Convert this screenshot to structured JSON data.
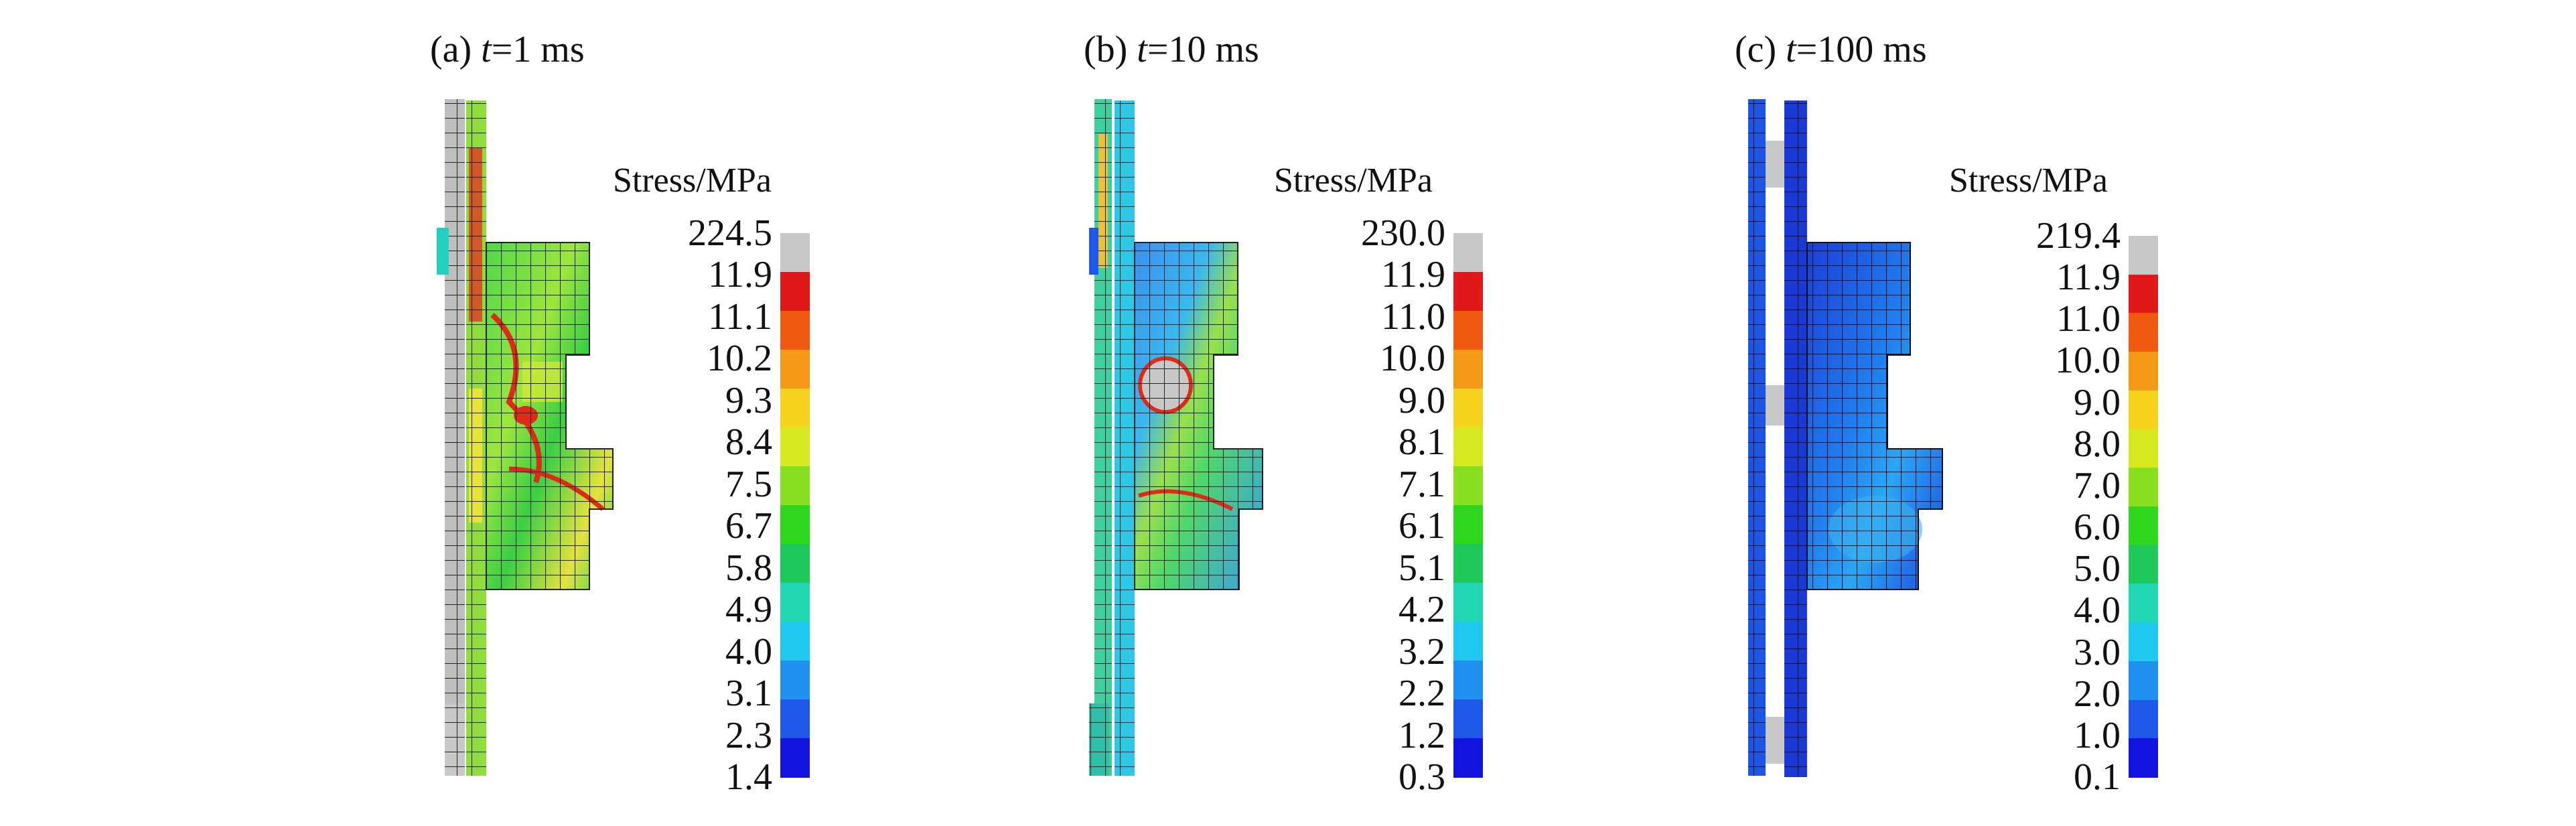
{
  "panels": [
    {
      "id": "a",
      "caption_prefix": "(a) ",
      "caption_var": "t",
      "caption_suffix": "=1 ms",
      "legend_title": "Stress/MPa",
      "legend_labels": [
        "224.5",
        "11.9",
        "11.1",
        "10.2",
        "9.3",
        "8.4",
        "7.5",
        "6.7",
        "5.8",
        "4.9",
        "4.0",
        "3.1",
        "2.3",
        "1.4"
      ],
      "dominant_colors": [
        "#2ecc40",
        "#8be04a",
        "#f5e23a",
        "#e03020"
      ]
    },
    {
      "id": "b",
      "caption_prefix": "(b) ",
      "caption_var": "t",
      "caption_suffix": "=10 ms",
      "legend_title": "Stress/MPa",
      "legend_labels": [
        "230.0",
        "11.9",
        "11.0",
        "10.0",
        "9.0",
        "8.1",
        "7.1",
        "6.1",
        "5.1",
        "4.2",
        "3.2",
        "2.2",
        "1.2",
        "0.3"
      ],
      "dominant_colors": [
        "#3aa0ff",
        "#2ad6e0",
        "#4fd86a",
        "#e5e940"
      ]
    },
    {
      "id": "c",
      "caption_prefix": "(c) ",
      "caption_var": "t",
      "caption_suffix": "=100 ms",
      "legend_title": "Stress/MPa",
      "legend_labels": [
        "219.4",
        "11.9",
        "11.0",
        "10.0",
        "9.0",
        "8.0",
        "7.0",
        "6.0",
        "5.0",
        "4.0",
        "3.0",
        "2.0",
        "1.0",
        "0.1"
      ],
      "dominant_colors": [
        "#1a3fd8",
        "#1f6ff0",
        "#2aa0f5",
        "#20c8d8"
      ]
    }
  ],
  "colorbar_colors": [
    "#c8c8c8",
    "#e01818",
    "#f05a10",
    "#f59a18",
    "#f5d21e",
    "#d6e820",
    "#88e020",
    "#2ed61e",
    "#20c85a",
    "#22d8b4",
    "#20c8f0",
    "#1e90f0",
    "#1e58e8",
    "#1414e0"
  ]
}
